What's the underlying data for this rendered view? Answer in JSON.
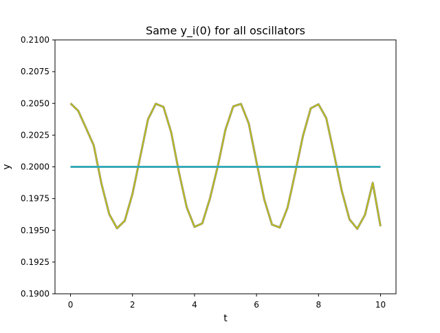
{
  "chart_data": {
    "type": "line",
    "title": "Same y_i(0) for all oscillators",
    "xlabel": "t",
    "ylabel": "y",
    "xlim": [
      -0.5,
      10.5
    ],
    "ylim": [
      0.19,
      0.21
    ],
    "xticks": [
      0,
      2,
      4,
      6,
      8,
      10
    ],
    "xtick_labels": [
      "0",
      "2",
      "4",
      "6",
      "8",
      "10"
    ],
    "yticks": [
      0.19,
      0.1925,
      0.195,
      0.1975,
      0.2,
      0.2025,
      0.205,
      0.2075,
      0.21
    ],
    "ytick_labels": [
      "0.1900",
      "0.1925",
      "0.1950",
      "0.1975",
      "0.2000",
      "0.2025",
      "0.2050",
      "0.2075",
      "0.2100"
    ],
    "grid": false,
    "legend": "none",
    "series": [
      {
        "color": "#bcbd22",
        "x": [
          0,
          0.25,
          0.5,
          0.75,
          1.0,
          1.25,
          1.5,
          1.75,
          2.0,
          2.25,
          2.5,
          2.75,
          3.0,
          3.25,
          3.5,
          3.75,
          4.0,
          4.25,
          4.5,
          4.75,
          5.0,
          5.25,
          5.5,
          5.75,
          6.0,
          6.25,
          6.5,
          6.75,
          7.0,
          7.25,
          7.5,
          7.75,
          8.0,
          8.25,
          8.5,
          8.75,
          9.0,
          9.25,
          9.5,
          9.75,
          10.0
        ],
        "y": [
          0.205,
          0.20441,
          0.20306,
          0.20169,
          0.19866,
          0.19627,
          0.19516,
          0.19575,
          0.19788,
          0.2008,
          0.20374,
          0.20497,
          0.20472,
          0.2027,
          0.19956,
          0.19681,
          0.19527,
          0.19554,
          0.19752,
          0.20004,
          0.20294,
          0.20476,
          0.20496,
          0.20342,
          0.20038,
          0.19743,
          0.19545,
          0.19522,
          0.19677,
          0.19954,
          0.20245,
          0.20461,
          0.20493,
          0.20384,
          0.20103,
          0.19812,
          0.19586,
          0.19512,
          0.19622,
          0.19874,
          0.19532
        ]
      },
      {
        "color": "#17becf",
        "x": [
          0,
          10
        ],
        "y": [
          0.2,
          0.2
        ]
      }
    ]
  }
}
